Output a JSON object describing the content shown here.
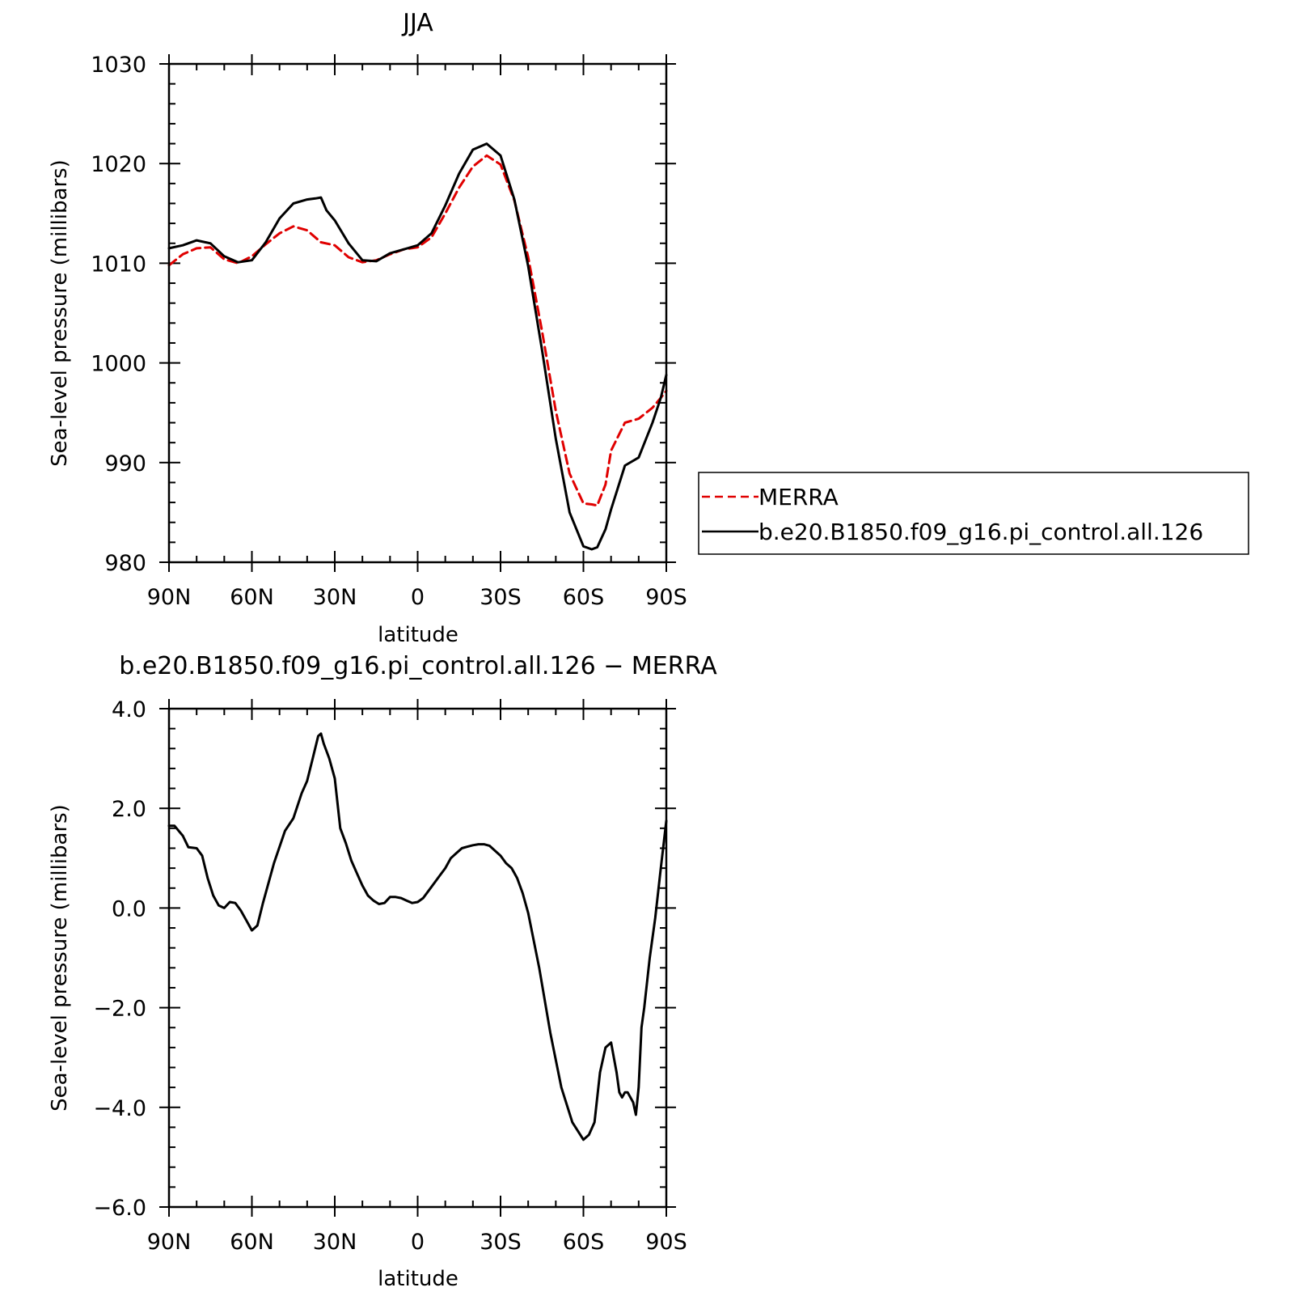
{
  "chart_data": [
    {
      "type": "line",
      "title": "JJA",
      "xlabel": "latitude",
      "ylabel": "Sea-level pressure (millibars)",
      "xlim": [
        90,
        -90
      ],
      "ylim": [
        980,
        1030
      ],
      "xticks": [
        {
          "value": 90,
          "label": "90N"
        },
        {
          "value": 60,
          "label": "60N"
        },
        {
          "value": 30,
          "label": "30N"
        },
        {
          "value": 0,
          "label": "0"
        },
        {
          "value": -30,
          "label": "30S"
        },
        {
          "value": -60,
          "label": "60S"
        },
        {
          "value": -90,
          "label": "90S"
        }
      ],
      "yticks": [
        {
          "value": 1030,
          "label": "1030"
        },
        {
          "value": 1020,
          "label": "1020"
        },
        {
          "value": 1010,
          "label": "1010"
        },
        {
          "value": 1000,
          "label": "1000"
        },
        {
          "value": 990,
          "label": "990"
        },
        {
          "value": 980,
          "label": "980"
        }
      ],
      "legend_position": "right",
      "series": [
        {
          "name": "MERRA",
          "color": "#e00000",
          "dash": true,
          "x": [
            90,
            85,
            80,
            75,
            70,
            65,
            60,
            55,
            50,
            45,
            40,
            35,
            30,
            25,
            20,
            15,
            10,
            5,
            0,
            -5,
            -10,
            -15,
            -20,
            -25,
            -30,
            -35,
            -40,
            -45,
            -50,
            -55,
            -60,
            -63,
            -65,
            -68,
            -70,
            -75,
            -80,
            -85,
            -88,
            -90
          ],
          "y": [
            1009.8,
            1010.9,
            1011.5,
            1011.6,
            1010.4,
            1010.0,
            1010.7,
            1011.9,
            1013.0,
            1013.7,
            1013.3,
            1012.1,
            1011.8,
            1010.6,
            1010.1,
            1010.3,
            1010.9,
            1011.4,
            1011.6,
            1012.6,
            1015.0,
            1017.6,
            1019.7,
            1020.8,
            1019.9,
            1016.3,
            1010.6,
            1003.2,
            995.2,
            988.9,
            985.9,
            985.8,
            985.7,
            987.8,
            991.2,
            994.0,
            994.4,
            995.5,
            996.5,
            997.2
          ]
        },
        {
          "name": "b.e20.B1850.f09_g16.pi_control.all.126",
          "color": "#000000",
          "dash": false,
          "x": [
            90,
            85,
            80,
            75,
            70,
            65,
            60,
            55,
            50,
            45,
            40,
            37,
            35,
            33,
            30,
            25,
            20,
            15,
            10,
            5,
            0,
            -5,
            -10,
            -15,
            -20,
            -25,
            -30,
            -35,
            -40,
            -45,
            -50,
            -55,
            -60,
            -63,
            -65,
            -68,
            -70,
            -75,
            -80,
            -85,
            -88,
            -90
          ],
          "y": [
            1011.5,
            1011.8,
            1012.3,
            1012.0,
            1010.7,
            1010.1,
            1010.3,
            1012.1,
            1014.5,
            1016.0,
            1016.4,
            1016.5,
            1016.6,
            1015.3,
            1014.3,
            1012.0,
            1010.3,
            1010.2,
            1011.0,
            1011.4,
            1011.8,
            1013.0,
            1015.8,
            1019.0,
            1021.4,
            1022.0,
            1020.8,
            1016.4,
            1009.7,
            1001.3,
            992.4,
            985.0,
            981.6,
            981.3,
            981.5,
            983.3,
            985.3,
            989.7,
            990.5,
            994.0,
            996.5,
            998.8
          ]
        }
      ]
    },
    {
      "type": "line",
      "title": "b.e20.B1850.f09_g16.pi_control.all.126 − MERRA",
      "xlabel": "latitude",
      "ylabel": "Sea-level pressure (millibars)",
      "xlim": [
        90,
        -90
      ],
      "ylim": [
        -6,
        4
      ],
      "xticks": [
        {
          "value": 90,
          "label": "90N"
        },
        {
          "value": 60,
          "label": "60N"
        },
        {
          "value": 30,
          "label": "30N"
        },
        {
          "value": 0,
          "label": "0"
        },
        {
          "value": -30,
          "label": "30S"
        },
        {
          "value": -60,
          "label": "60S"
        },
        {
          "value": -90,
          "label": "90S"
        }
      ],
      "yticks": [
        {
          "value": 4,
          "label": "4.0"
        },
        {
          "value": 2,
          "label": "2.0"
        },
        {
          "value": 0,
          "label": "0.0"
        },
        {
          "value": -2,
          "label": "−2.0"
        },
        {
          "value": -4,
          "label": "−4.0"
        },
        {
          "value": -6,
          "label": "−6.0"
        }
      ],
      "series": [
        {
          "color": "#000000",
          "x": [
            90,
            88,
            85,
            83,
            80,
            78,
            76,
            74,
            72,
            70,
            68,
            66,
            64,
            62,
            60,
            58,
            56,
            52,
            48,
            45,
            42,
            40,
            38,
            36,
            35,
            34,
            32,
            30,
            28,
            26,
            24,
            22,
            20,
            18,
            16,
            14,
            12,
            10,
            8,
            6,
            4,
            2,
            0,
            -2,
            -4,
            -6,
            -8,
            -10,
            -12,
            -14,
            -16,
            -18,
            -20,
            -22,
            -24,
            -26,
            -28,
            -30,
            -32,
            -34,
            -36,
            -38,
            -40,
            -44,
            -48,
            -52,
            -56,
            -60,
            -62,
            -64,
            -66,
            -68,
            -70,
            -72,
            -73,
            -74,
            -75,
            -76,
            -78,
            -79,
            -80,
            -81,
            -82,
            -84,
            -86,
            -88,
            -90
          ],
          "y": [
            1.65,
            1.65,
            1.45,
            1.22,
            1.2,
            1.05,
            0.6,
            0.25,
            0.05,
            0.0,
            0.12,
            0.1,
            -0.05,
            -0.25,
            -0.45,
            -0.35,
            0.1,
            0.9,
            1.55,
            1.8,
            2.3,
            2.55,
            3.0,
            3.45,
            3.5,
            3.3,
            3.0,
            2.6,
            1.6,
            1.3,
            0.95,
            0.7,
            0.45,
            0.25,
            0.15,
            0.08,
            0.1,
            0.22,
            0.22,
            0.2,
            0.15,
            0.1,
            0.12,
            0.2,
            0.35,
            0.5,
            0.65,
            0.8,
            1.0,
            1.1,
            1.2,
            1.23,
            1.26,
            1.28,
            1.28,
            1.25,
            1.15,
            1.05,
            0.9,
            0.8,
            0.6,
            0.3,
            -0.1,
            -1.2,
            -2.5,
            -3.6,
            -4.3,
            -4.65,
            -4.55,
            -4.3,
            -3.3,
            -2.8,
            -2.7,
            -3.3,
            -3.7,
            -3.8,
            -3.7,
            -3.7,
            -3.9,
            -4.15,
            -3.6,
            -2.4,
            -2.0,
            -1.0,
            -0.2,
            0.8,
            1.75
          ]
        }
      ]
    }
  ]
}
